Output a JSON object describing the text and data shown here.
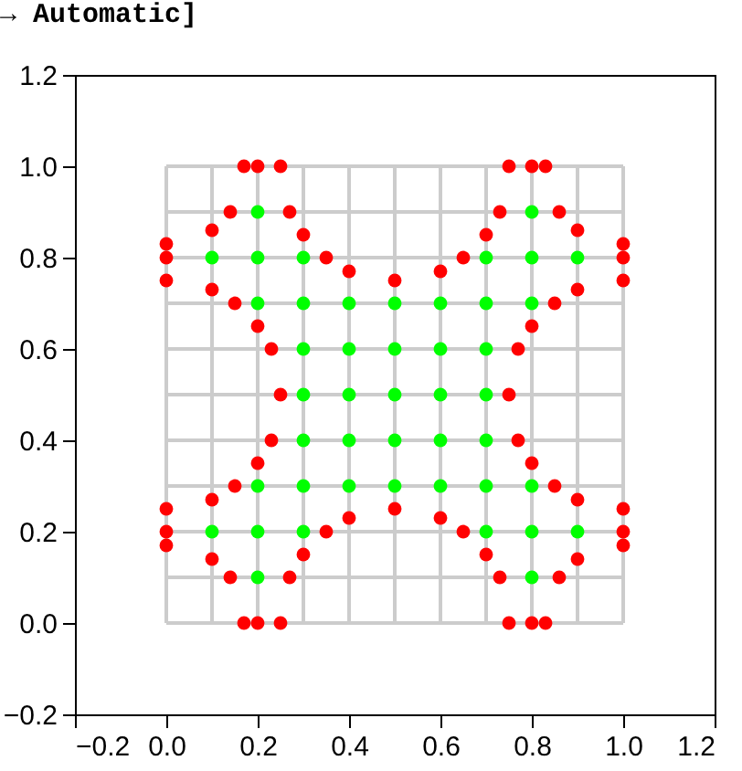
{
  "chart_data": {
    "type": "scatter",
    "annotations": [
      "→ Automatic]"
    ],
    "xlim": [
      -0.2,
      1.2
    ],
    "ylim": [
      -0.2,
      1.2
    ],
    "xticks": [
      {
        "value": -0.2,
        "label": "−0.2"
      },
      {
        "value": 0,
        "label": "0.0"
      },
      {
        "value": 0.2,
        "label": "0.2"
      },
      {
        "value": 0.4,
        "label": "0.4"
      },
      {
        "value": 0.6,
        "label": "0.6"
      },
      {
        "value": 0.8,
        "label": "0.8"
      },
      {
        "value": 1,
        "label": "1.0"
      },
      {
        "value": 1.2,
        "label": "1.2"
      }
    ],
    "yticks": [
      {
        "value": -0.2,
        "label": "−0.2"
      },
      {
        "value": 0,
        "label": "0.0"
      },
      {
        "value": 0.2,
        "label": "0.2"
      },
      {
        "value": 0.4,
        "label": "0.4"
      },
      {
        "value": 0.6,
        "label": "0.6"
      },
      {
        "value": 0.8,
        "label": "0.8"
      },
      {
        "value": 1,
        "label": "1.0"
      },
      {
        "value": 1.2,
        "label": "1.2"
      }
    ],
    "series": [
      {
        "type": "line",
        "color": "#cccccc",
        "x": [
          0,
          0
        ],
        "values": [
          0,
          1
        ]
      },
      {
        "type": "line",
        "color": "#cccccc",
        "x": [
          0.1,
          0.1
        ],
        "values": [
          0,
          1
        ]
      },
      {
        "type": "line",
        "color": "#cccccc",
        "x": [
          0.2,
          0.2
        ],
        "values": [
          0,
          1
        ]
      },
      {
        "type": "line",
        "color": "#cccccc",
        "x": [
          0.3,
          0.3
        ],
        "values": [
          0,
          1
        ]
      },
      {
        "type": "line",
        "color": "#cccccc",
        "x": [
          0.4,
          0.4
        ],
        "values": [
          0,
          1
        ]
      },
      {
        "type": "line",
        "color": "#cccccc",
        "x": [
          0.5,
          0.5
        ],
        "values": [
          0,
          1
        ]
      },
      {
        "type": "line",
        "color": "#cccccc",
        "x": [
          0.6,
          0.6
        ],
        "values": [
          0,
          1
        ]
      },
      {
        "type": "line",
        "color": "#cccccc",
        "x": [
          0.7,
          0.7
        ],
        "values": [
          0,
          1
        ]
      },
      {
        "type": "line",
        "color": "#cccccc",
        "x": [
          0.8,
          0.8
        ],
        "values": [
          0,
          1
        ]
      },
      {
        "type": "line",
        "color": "#cccccc",
        "x": [
          0.9,
          0.9
        ],
        "values": [
          0,
          1
        ]
      },
      {
        "type": "line",
        "color": "#cccccc",
        "x": [
          1,
          1
        ],
        "values": [
          0,
          1
        ]
      },
      {
        "type": "line",
        "color": "#cccccc",
        "x": [
          0,
          1
        ],
        "values": [
          0,
          0
        ]
      },
      {
        "type": "line",
        "color": "#cccccc",
        "x": [
          0,
          1
        ],
        "values": [
          0.1,
          0.1
        ]
      },
      {
        "type": "line",
        "color": "#cccccc",
        "x": [
          0,
          1
        ],
        "values": [
          0.2,
          0.2
        ]
      },
      {
        "type": "line",
        "color": "#cccccc",
        "x": [
          0,
          1
        ],
        "values": [
          0.3,
          0.3
        ]
      },
      {
        "type": "line",
        "color": "#cccccc",
        "x": [
          0,
          1
        ],
        "values": [
          0.4,
          0.4
        ]
      },
      {
        "type": "line",
        "color": "#cccccc",
        "x": [
          0,
          1
        ],
        "values": [
          0.5,
          0.5
        ]
      },
      {
        "type": "line",
        "color": "#cccccc",
        "x": [
          0,
          1
        ],
        "values": [
          0.6,
          0.6
        ]
      },
      {
        "type": "line",
        "color": "#cccccc",
        "x": [
          0,
          1
        ],
        "values": [
          0.7,
          0.7
        ]
      },
      {
        "type": "line",
        "color": "#cccccc",
        "x": [
          0,
          1
        ],
        "values": [
          0.8,
          0.8
        ]
      },
      {
        "type": "line",
        "color": "#cccccc",
        "x": [
          0,
          1
        ],
        "values": [
          0.9,
          0.9
        ]
      },
      {
        "type": "line",
        "color": "#cccccc",
        "x": [
          0,
          1
        ],
        "values": [
          1,
          1
        ]
      },
      {
        "marker": "circle",
        "color": "#00ff00",
        "x": [
          0.2,
          0.8,
          0.1,
          0.2,
          0.3,
          0.7,
          0.8,
          0.9,
          0.2,
          0.3,
          0.4,
          0.5,
          0.6,
          0.7,
          0.8,
          0.3,
          0.4,
          0.5,
          0.6,
          0.7,
          0.3,
          0.4,
          0.5,
          0.6,
          0.7,
          0.3,
          0.4,
          0.5,
          0.6,
          0.7,
          0.2,
          0.3,
          0.4,
          0.5,
          0.6,
          0.7,
          0.8,
          0.1,
          0.2,
          0.3,
          0.7,
          0.8,
          0.9,
          0.2,
          0.8
        ],
        "values": [
          0.9,
          0.9,
          0.8,
          0.8,
          0.8,
          0.8,
          0.8,
          0.8,
          0.7,
          0.7,
          0.7,
          0.7,
          0.7,
          0.7,
          0.7,
          0.6,
          0.6,
          0.6,
          0.6,
          0.6,
          0.5,
          0.5,
          0.5,
          0.5,
          0.5,
          0.4,
          0.4,
          0.4,
          0.4,
          0.4,
          0.3,
          0.3,
          0.3,
          0.3,
          0.3,
          0.3,
          0.3,
          0.2,
          0.2,
          0.2,
          0.2,
          0.2,
          0.2,
          0.1,
          0.1
        ]
      },
      {
        "marker": "circle",
        "color": "#ff0000",
        "x": [
          0.17,
          0.2,
          0.25,
          0.75,
          0.8,
          0.83,
          0.14,
          0.27,
          0.73,
          0.86,
          0.1,
          0.3,
          0.7,
          0.9,
          0,
          0,
          0,
          1,
          1,
          1,
          0.35,
          0.65,
          0.4,
          0.5,
          0.6,
          0.1,
          0.9,
          0.15,
          0.85,
          0.2,
          0.8,
          0.23,
          0.77,
          0.25,
          0.75,
          0.23,
          0.77,
          0.2,
          0.8,
          0.15,
          0.85,
          0.1,
          0.9,
          0,
          0,
          0,
          1,
          1,
          1,
          0.35,
          0.65,
          0.4,
          0.5,
          0.6,
          0.3,
          0.7,
          0.1,
          0.9,
          0.14,
          0.27,
          0.73,
          0.86,
          0.17,
          0.2,
          0.25,
          0.75,
          0.8,
          0.83
        ],
        "values": [
          1,
          1,
          1,
          1,
          1,
          1,
          0.9,
          0.9,
          0.9,
          0.9,
          0.86,
          0.85,
          0.85,
          0.86,
          0.83,
          0.8,
          0.75,
          0.83,
          0.8,
          0.75,
          0.8,
          0.8,
          0.77,
          0.75,
          0.77,
          0.73,
          0.73,
          0.7,
          0.7,
          0.65,
          0.65,
          0.6,
          0.6,
          0.5,
          0.5,
          0.4,
          0.4,
          0.35,
          0.35,
          0.3,
          0.3,
          0.27,
          0.27,
          0.25,
          0.2,
          0.17,
          0.25,
          0.2,
          0.17,
          0.2,
          0.2,
          0.23,
          0.25,
          0.23,
          0.15,
          0.15,
          0.14,
          0.14,
          0.1,
          0.1,
          0.1,
          0.1,
          0,
          0,
          0,
          0,
          0,
          0
        ]
      }
    ]
  }
}
